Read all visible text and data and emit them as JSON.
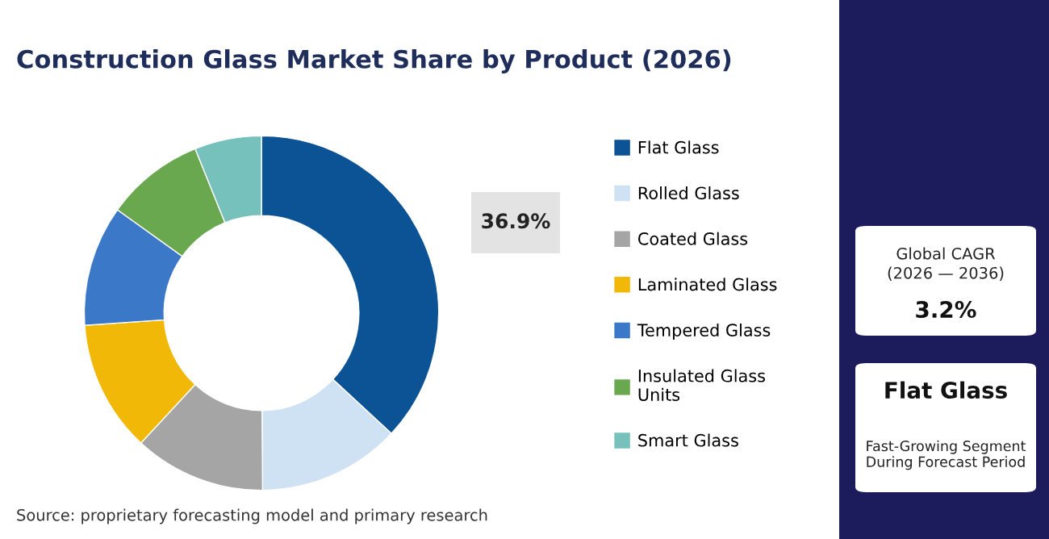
{
  "chart_data": {
    "type": "donut",
    "title": "Construction Glass Market Share by Product (2026)",
    "categories": [
      "Flat Glass",
      "Rolled Glass",
      "Coated Glass",
      "Laminated Glass",
      "Tempered Glass",
      "Insulated Glass Units",
      "Smart Glass"
    ],
    "values": [
      36.9,
      13,
      12,
      12,
      11,
      9,
      6.1
    ],
    "colors": [
      "#0b5394",
      "#cfe2f3",
      "#a5a5a5",
      "#f1b807",
      "#3c78c8",
      "#6aa84f",
      "#76c1bb"
    ],
    "value_labels": [
      "36.9%",
      null,
      null,
      null,
      null,
      null,
      null
    ],
    "legend": "right",
    "annotations": [
      "Source: proprietary forecasting model and primary research",
      "Global CAGR",
      "(2026 — 2036)",
      "3.2%",
      "Flat Glass",
      "Fast-Growing Segment During Forecast Period"
    ]
  }
}
